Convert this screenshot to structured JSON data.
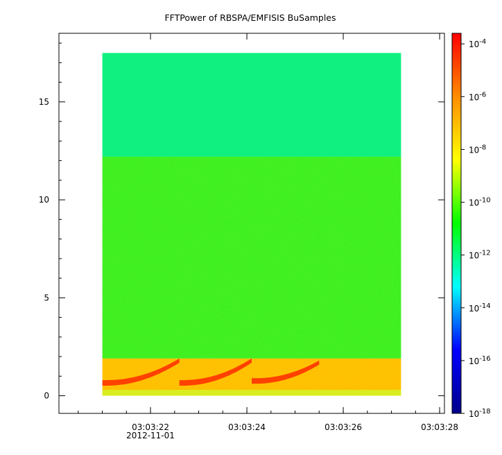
{
  "chart_data": {
    "type": "heatmap",
    "title": "FFTPower of RBSPA/EMFISIS  BuSamples",
    "x_axis": {
      "ticks": [
        "03:03:22",
        "03:03:24",
        "03:03:26",
        "03:03:28"
      ],
      "date_label": "2012-11-01",
      "range": [
        "03:03:20.1",
        "03:03:28.1"
      ],
      "data_range": [
        "03:03:21.0",
        "03:03:27.2"
      ]
    },
    "y_axis": {
      "ticks": [
        "0",
        "5",
        "10",
        "15"
      ],
      "range": [
        -0.9,
        18.5
      ],
      "data_range": [
        0,
        17.5
      ]
    },
    "colorbar": {
      "scale": "log",
      "range_exponents": [
        -18,
        -3.6
      ],
      "ticks": [
        {
          "base": "10",
          "exp": "-4"
        },
        {
          "base": "10",
          "exp": "-6"
        },
        {
          "base": "10",
          "exp": "-8"
        },
        {
          "base": "10",
          "exp": "-10"
        },
        {
          "base": "10",
          "exp": "-12"
        },
        {
          "base": "10",
          "exp": "-14"
        },
        {
          "base": "10",
          "exp": "-16"
        },
        {
          "base": "10",
          "exp": "-18"
        }
      ],
      "colormap": [
        "#00008b",
        "#0000ff",
        "#00ffff",
        "#00ff00",
        "#ffff00",
        "#ff8c00",
        "#ff0000"
      ]
    },
    "regions": [
      {
        "y": [
          12.2,
          17.5
        ],
        "power_exp": -11.2,
        "color": "#10f080"
      },
      {
        "y": [
          1.9,
          12.2
        ],
        "power_exp": -10.3,
        "color": "#3cf020"
      },
      {
        "y": [
          0.0,
          1.9
        ],
        "power_exp": -7.5,
        "color": "#ffc000"
      }
    ],
    "features": [
      {
        "name": "chorus-rising-tones",
        "color": "#ff2a00",
        "elements": [
          {
            "t_start": "03:03:21.0",
            "t_end": "03:03:22.6",
            "f_start": 0.8,
            "f_end": 1.9
          },
          {
            "t_start": "03:03:22.6",
            "t_end": "03:03:24.1",
            "f_start": 0.8,
            "f_end": 1.9
          },
          {
            "t_start": "03:03:24.1",
            "t_end": "03:03:25.5",
            "f_start": 0.9,
            "f_end": 1.8
          }
        ]
      }
    ]
  }
}
